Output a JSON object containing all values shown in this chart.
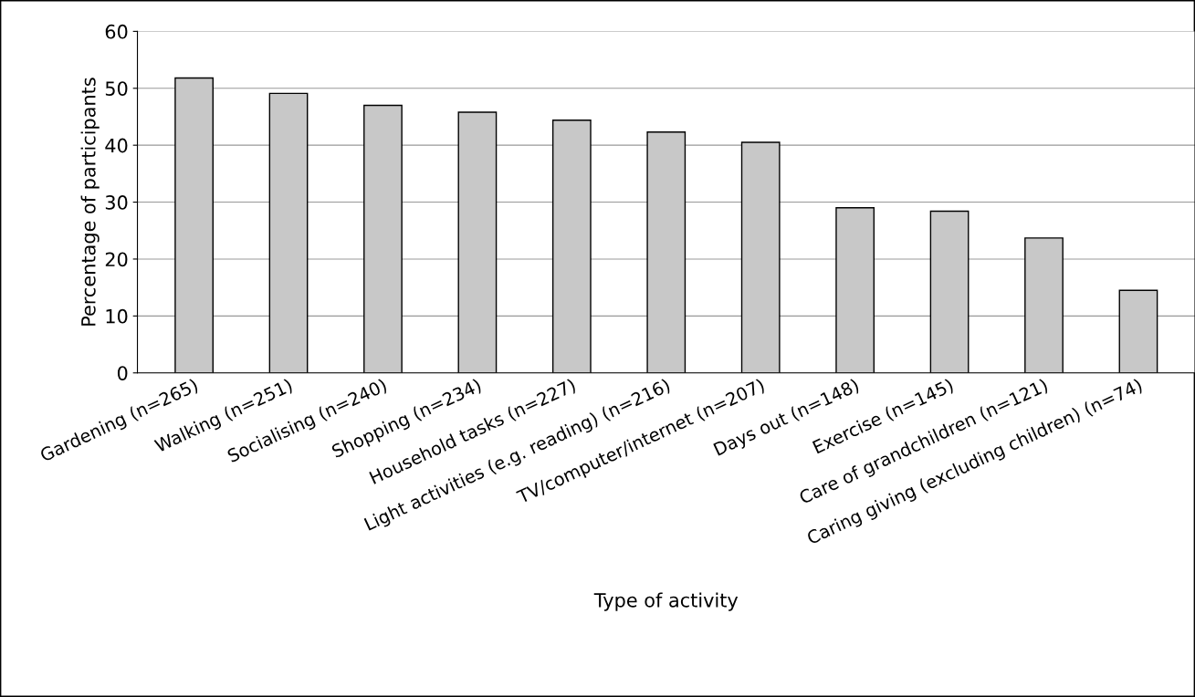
{
  "chart_data": {
    "type": "bar",
    "xlabel": "Type of activity",
    "ylabel": "Percentage of participants",
    "categories": [
      "Gardening (n=265)",
      "Walking (n=251)",
      "Socialising (n=240)",
      "Shopping (n=234)",
      "Household tasks (n=227)",
      "Light activities (e.g. reading) (n=216)",
      "TV/computer/internet (n=207)",
      "Days out (n=148)",
      "Exercise (n=145)",
      "Care of grandchildren (n=121)",
      "Caring giving (excluding children) (n=74)"
    ],
    "values": [
      51.8,
      49.1,
      47.0,
      45.8,
      44.4,
      42.3,
      40.5,
      29.0,
      28.4,
      23.7,
      14.5
    ],
    "color": "#c8c8c8",
    "ylim": [
      0,
      60
    ],
    "yticks": [
      0,
      10,
      20,
      30,
      40,
      50,
      60
    ],
    "grid": "y"
  }
}
